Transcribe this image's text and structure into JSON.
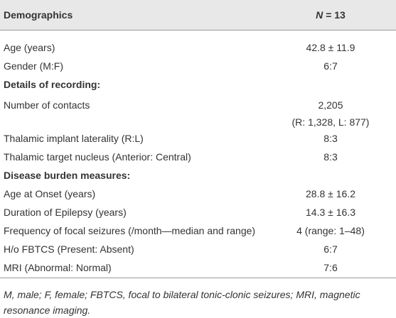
{
  "table": {
    "header": [
      "Demographics",
      [
        "N",
        "= 13"
      ]
    ],
    "rows": [
      [
        "Age (years)",
        "42.8 ± 11.9"
      ],
      [
        "Gender (M:F)",
        "6:7"
      ],
      [
        "Details of recording:"
      ],
      [
        "Number of contacts",
        [
          "2,205",
          "(R: 1,328, L: 877)"
        ]
      ],
      [
        "Thalamic implant laterality (R:L)",
        "8:3"
      ],
      [
        "Thalamic target nucleus (Anterior: Central)",
        "8:3"
      ],
      [
        "Disease burden measures:"
      ],
      [
        "Age at Onset (years)",
        "28.8 ± 16.2"
      ],
      [
        "Duration of Epilepsy (years)",
        "14.3 ± 16.3"
      ],
      [
        "Frequency of focal seizures (/month—median and range)",
        "4 (range: 1–48)"
      ],
      [
        "H/o FBTCS (Present: Absent)",
        "6:7"
      ],
      [
        "MRI (Abnormal: Normal)",
        "7:6"
      ]
    ],
    "footnote": "M, male; F, female; FBTCS, focal to bilateral tonic-clonic seizures; MRI, magnetic resonance imaging."
  }
}
